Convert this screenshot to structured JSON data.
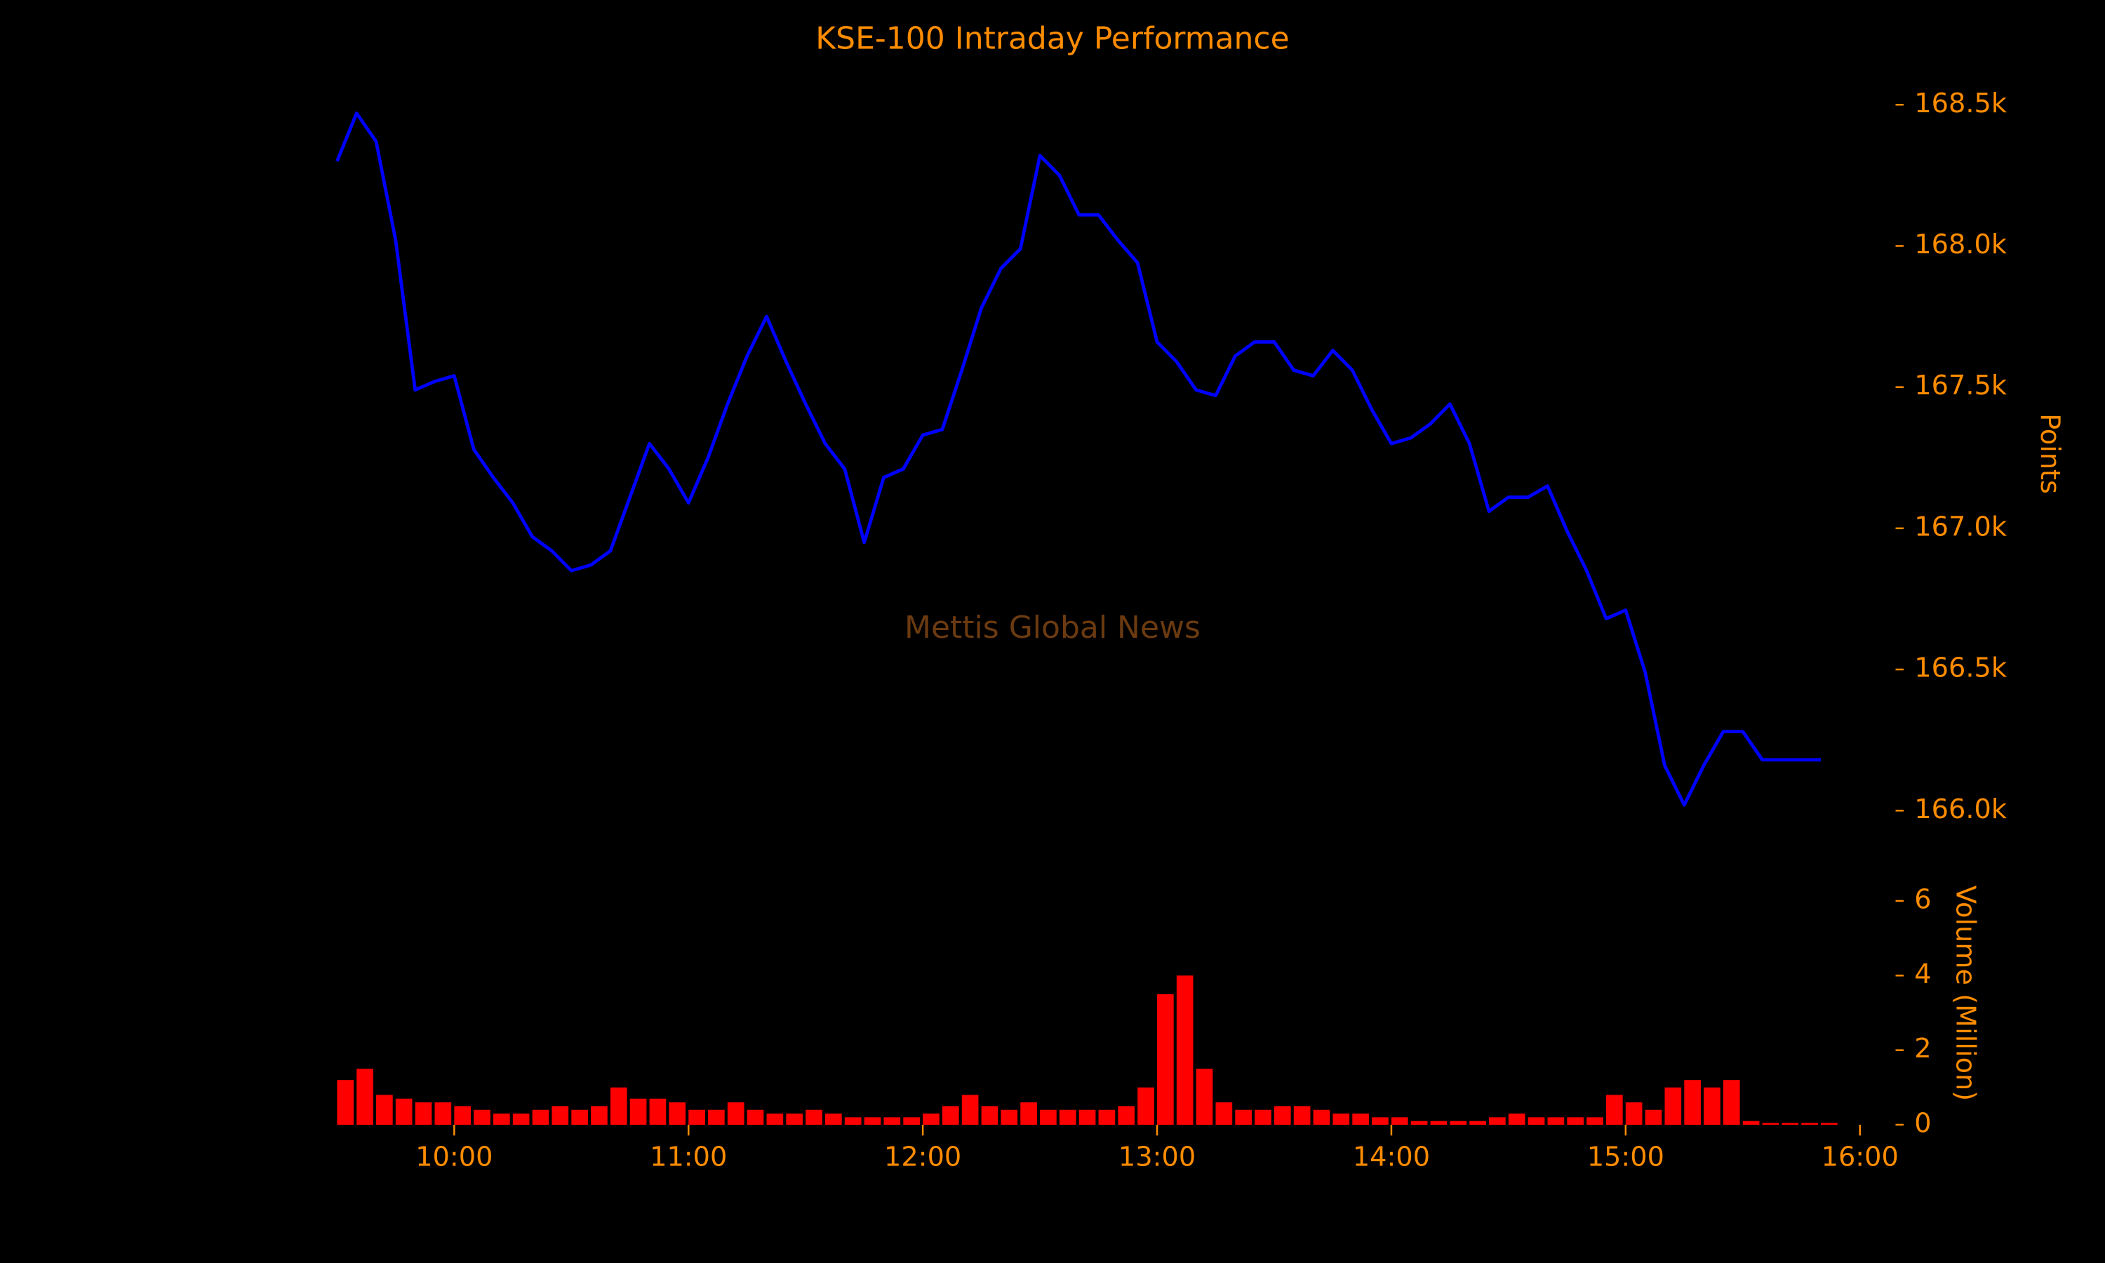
{
  "chart_data": [
    {
      "type": "line",
      "title": "KSE-100 Intraday Performance",
      "ylabel": "Points",
      "annotation": "Mettis Global News",
      "color": "#0000ff",
      "x": [
        "09:30",
        "09:35",
        "09:40",
        "09:45",
        "09:50",
        "09:55",
        "10:00",
        "10:05",
        "10:10",
        "10:15",
        "10:20",
        "10:25",
        "10:30",
        "10:35",
        "10:40",
        "10:45",
        "10:50",
        "10:55",
        "11:00",
        "11:05",
        "11:10",
        "11:15",
        "11:20",
        "11:25",
        "11:30",
        "11:35",
        "11:40",
        "11:45",
        "11:50",
        "11:55",
        "12:00",
        "12:05",
        "12:10",
        "12:15",
        "12:20",
        "12:25",
        "12:30",
        "12:35",
        "12:40",
        "12:45",
        "12:50",
        "12:55",
        "13:00",
        "13:05",
        "13:10",
        "13:15",
        "13:20",
        "13:25",
        "13:30",
        "13:35",
        "13:40",
        "13:45",
        "13:50",
        "13:55",
        "14:00",
        "14:05",
        "14:10",
        "14:15",
        "14:20",
        "14:25",
        "14:30",
        "14:35",
        "14:40",
        "14:45",
        "14:50",
        "14:55",
        "15:00",
        "15:05",
        "15:10",
        "15:15",
        "15:20",
        "15:25",
        "15:30",
        "15:35",
        "15:40",
        "15:45",
        "15:50"
      ],
      "values": [
        168300,
        168470,
        168370,
        168020,
        167490,
        167520,
        167540,
        167280,
        167180,
        167090,
        166970,
        166920,
        166850,
        166870,
        166920,
        167110,
        167300,
        167210,
        167090,
        167250,
        167440,
        167610,
        167750,
        167590,
        167440,
        167300,
        167210,
        166950,
        167180,
        167210,
        167330,
        167350,
        167560,
        167780,
        167920,
        167990,
        168320,
        168250,
        168110,
        168110,
        168020,
        167940,
        167660,
        167590,
        167490,
        167470,
        167610,
        167660,
        167660,
        167560,
        167540,
        167630,
        167560,
        167420,
        167300,
        167320,
        167370,
        167440,
        167300,
        167060,
        167110,
        167110,
        167150,
        166990,
        166850,
        166680,
        166710,
        166490,
        166160,
        166020,
        166160,
        166280,
        166280,
        166180,
        166180,
        166180,
        166180
      ],
      "xlim": [
        "09:20",
        "16:05"
      ],
      "ylim": [
        165900,
        168600
      ],
      "yticks": [
        {
          "value": 166000,
          "label": "166.0k"
        },
        {
          "value": 166500,
          "label": "166.5k"
        },
        {
          "value": 167000,
          "label": "167.0k"
        },
        {
          "value": 167500,
          "label": "167.5k"
        },
        {
          "value": 168000,
          "label": "168.0k"
        },
        {
          "value": 168500,
          "label": "168.5k"
        }
      ]
    },
    {
      "type": "bar",
      "ylabel": "Volume (Million)",
      "color": "#ff0000",
      "x": [
        "09:30",
        "09:35",
        "09:40",
        "09:45",
        "09:50",
        "09:55",
        "10:00",
        "10:05",
        "10:10",
        "10:15",
        "10:20",
        "10:25",
        "10:30",
        "10:35",
        "10:40",
        "10:45",
        "10:50",
        "10:55",
        "11:00",
        "11:05",
        "11:10",
        "11:15",
        "11:20",
        "11:25",
        "11:30",
        "11:35",
        "11:40",
        "11:45",
        "11:50",
        "11:55",
        "12:00",
        "12:05",
        "12:10",
        "12:15",
        "12:20",
        "12:25",
        "12:30",
        "12:35",
        "12:40",
        "12:45",
        "12:50",
        "12:55",
        "13:00",
        "13:05",
        "13:10",
        "13:15",
        "13:20",
        "13:25",
        "13:30",
        "13:35",
        "13:40",
        "13:45",
        "13:50",
        "13:55",
        "14:00",
        "14:05",
        "14:10",
        "14:15",
        "14:20",
        "14:25",
        "14:30",
        "14:35",
        "14:40",
        "14:45",
        "14:50",
        "14:55",
        "15:00",
        "15:05",
        "15:10",
        "15:15",
        "15:20",
        "15:25",
        "15:30",
        "15:35",
        "15:40",
        "15:45",
        "15:50"
      ],
      "values": [
        1.2,
        1.5,
        0.8,
        0.7,
        0.6,
        0.6,
        0.5,
        0.4,
        0.3,
        0.3,
        0.4,
        0.5,
        0.4,
        0.5,
        1.0,
        0.7,
        0.7,
        0.6,
        0.4,
        0.4,
        0.6,
        0.4,
        0.3,
        0.3,
        0.4,
        0.3,
        0.2,
        0.2,
        0.2,
        0.2,
        0.3,
        0.5,
        0.8,
        0.5,
        0.4,
        0.6,
        0.4,
        0.4,
        0.4,
        0.4,
        0.5,
        1.0,
        3.5,
        4.0,
        1.5,
        0.6,
        0.4,
        0.4,
        0.5,
        0.5,
        0.4,
        0.3,
        0.3,
        0.2,
        0.2,
        0.1,
        0.1,
        0.1,
        0.1,
        0.2,
        0.3,
        0.2,
        0.2,
        0.2,
        0.2,
        0.8,
        0.6,
        0.4,
        1.0,
        1.2,
        1.0,
        1.2,
        0.1,
        0.05,
        0.05,
        0.05,
        0.05
      ],
      "xlim": [
        "09:20",
        "16:05"
      ],
      "xticks": [
        "10:00",
        "11:00",
        "12:00",
        "13:00",
        "14:00",
        "15:00",
        "16:00"
      ],
      "ylim": [
        0,
        6.8
      ],
      "yticks": [
        0,
        2,
        4,
        6
      ]
    }
  ]
}
